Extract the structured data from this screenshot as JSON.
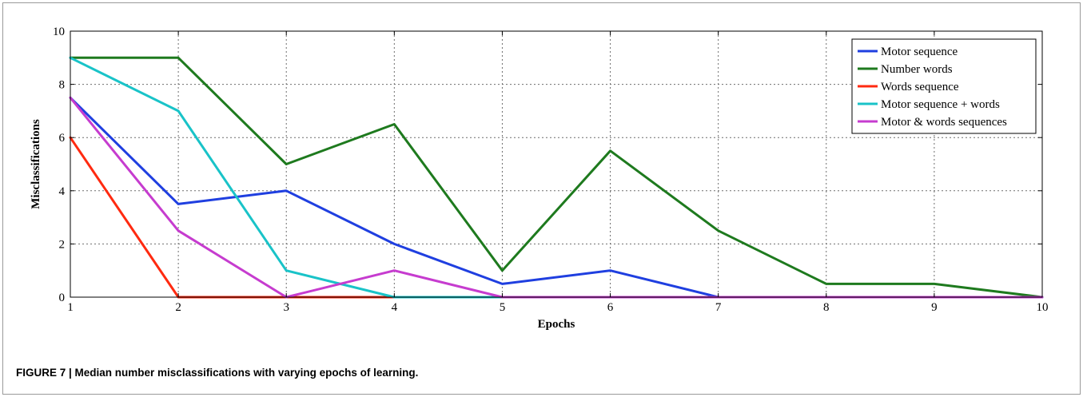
{
  "caption": "FIGURE 7 | Median number misclassifications with varying epochs of learning.",
  "chart_data": {
    "type": "line",
    "title": "",
    "xlabel": "Epochs",
    "ylabel": "Misclassifications",
    "xlim": [
      1,
      10
    ],
    "ylim": [
      0,
      10
    ],
    "xticks": [
      1,
      2,
      3,
      4,
      5,
      6,
      7,
      8,
      9,
      10
    ],
    "yticks": [
      0,
      2,
      4,
      6,
      8,
      10
    ],
    "grid": true,
    "legend_position": "top-right",
    "x": [
      1,
      2,
      3,
      4,
      5,
      6,
      7,
      8,
      9,
      10
    ],
    "series": [
      {
        "name": "Motor sequence",
        "color": "#1f3fe0",
        "values": [
          7.5,
          3.5,
          4,
          2,
          0.5,
          1,
          0,
          0,
          0,
          0
        ]
      },
      {
        "name": "Number words",
        "color": "#1e7a1e",
        "values": [
          9,
          9,
          5,
          6.5,
          1,
          5.5,
          2.5,
          0.5,
          0.5,
          0
        ]
      },
      {
        "name": "Words sequence",
        "color": "#ff2a10",
        "values": [
          6,
          0,
          0,
          0,
          null,
          null,
          null,
          null,
          null,
          null
        ]
      },
      {
        "name": "Motor sequence + words",
        "color": "#19c3c8",
        "values": [
          9,
          7,
          1,
          0,
          0,
          0,
          0,
          0,
          0,
          0
        ]
      },
      {
        "name": "Motor & words sequences",
        "color": "#c63ccf",
        "values": [
          7.5,
          2.5,
          0,
          1,
          0,
          0,
          0,
          0,
          0,
          0
        ]
      }
    ]
  }
}
